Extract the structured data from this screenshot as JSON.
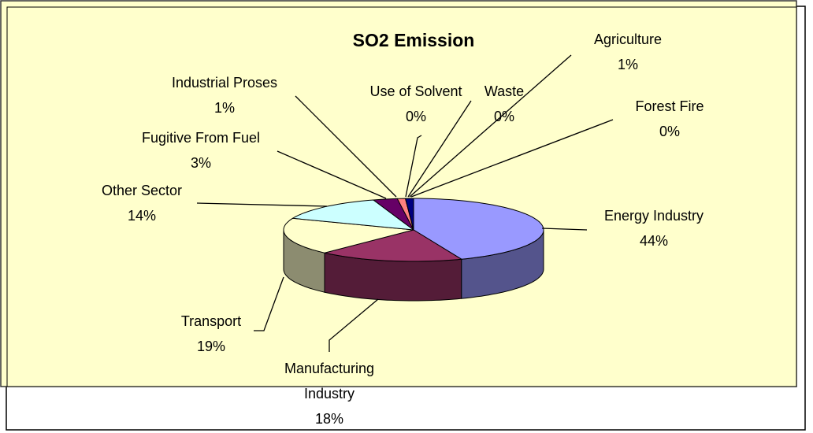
{
  "chart_data": {
    "type": "pie3d",
    "title": "SO2 Emission",
    "categories": [
      "Energy Industry",
      "Manufacturing Industry",
      "Transport",
      "Other Sector",
      "Fugitive From Fuel",
      "Industrial Proses",
      "Use of Solvent",
      "Waste",
      "Agriculture",
      "Forest Fire"
    ],
    "values": [
      44,
      18,
      19,
      14,
      3,
      1,
      0,
      0,
      1,
      0
    ],
    "value_labels": [
      "44%",
      "18%",
      "19%",
      "14%",
      "3%",
      "1%",
      "0%",
      "0%",
      "1%",
      "0%"
    ],
    "colors": [
      "#9999ff",
      "#993366",
      "#ffffcc",
      "#ccffff",
      "#660066",
      "#ff8080",
      "#0066cc",
      "#ccccff",
      "#000080",
      "#ff00ff"
    ]
  }
}
